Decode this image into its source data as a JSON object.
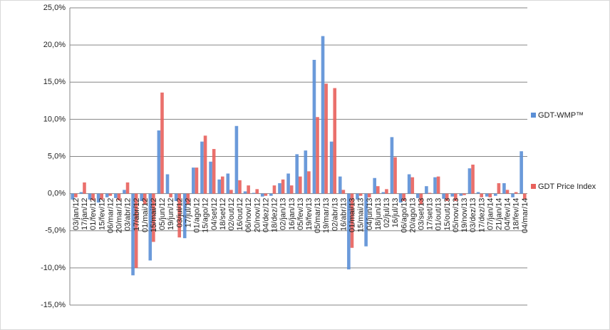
{
  "chart_data": {
    "type": "bar",
    "categories": [
      "03/jan/12",
      "17/jan/12",
      "01/fev/12",
      "15/fev/12",
      "06/mar/12",
      "20/mar/12",
      "03/abr/12",
      "17/abr/12",
      "01/mai/12",
      "15/mai/12",
      "05/jun/12",
      "19/jun/12",
      "03/jul/12",
      "17/jul/12",
      "01/ago/12",
      "15/ago/12",
      "04/set/12",
      "18/set/12",
      "02/out/12",
      "16/out/12",
      "06/nov/12",
      "20/nov/12",
      "04/dez/12",
      "18/dez/12",
      "02/jan/13",
      "16/jan/13",
      "05/fev/13",
      "19/fev/13",
      "05/mar/13",
      "19/mar/13",
      "02/abr/13",
      "16/abr/13",
      "01/mai/13",
      "15/mai/13",
      "04/jun/13",
      "18/jun/13",
      "02/jul/13",
      "16/jul/13",
      "06/ago/13",
      "20/ago/13",
      "03/set/13",
      "17/set/13",
      "01/out/13",
      "15/out/13",
      "05/nov/13",
      "19/nov/13",
      "03/dez/13",
      "17/dez/13",
      "07/jan/14",
      "21/jan/14",
      "04/fev/14",
      "18/fev/14",
      "04/mar/14"
    ],
    "series": [
      {
        "name": "GDT-WMP™",
        "color": "#5b8fd6",
        "values": [
          -0.8,
          0.2,
          -0.8,
          -1.2,
          -0.5,
          -0.6,
          0.5,
          -11.0,
          -1.0,
          -9.0,
          8.5,
          2.6,
          -1.0,
          -6.0,
          3.5,
          7.0,
          4.3,
          1.9,
          2.7,
          9.1,
          0.3,
          0.1,
          -0.4,
          -0.3,
          1.4,
          2.7,
          5.3,
          5.8,
          18.0,
          21.2,
          7.0,
          2.3,
          -10.2,
          -0.8,
          -7.1,
          2.1,
          0.2,
          7.6,
          -1.2,
          2.6,
          -0.6,
          1.0,
          2.2,
          -0.7,
          -0.4,
          -0.3,
          3.4,
          0.2,
          -0.4,
          -0.3,
          1.4,
          -0.5,
          5.7
        ]
      },
      {
        "name": "GDT Price Index",
        "color": "#e8615c",
        "values": [
          -0.5,
          1.5,
          -0.9,
          -0.8,
          -0.3,
          -0.9,
          1.5,
          -10.0,
          -1.5,
          -6.5,
          13.6,
          -0.5,
          -5.9,
          -1.5,
          3.5,
          7.8,
          6.0,
          2.3,
          0.5,
          1.8,
          1.1,
          0.6,
          -0.3,
          1.1,
          1.9,
          1.1,
          2.3,
          3.0,
          10.3,
          14.8,
          14.2,
          0.5,
          -7.3,
          -0.3,
          -0.5,
          1.0,
          0.6,
          4.9,
          -1.0,
          2.2,
          -1.5,
          0.1,
          2.3,
          -1.0,
          -1.0,
          -0.2,
          3.9,
          -0.5,
          -0.5,
          1.4,
          0.5,
          0.2,
          -0.8
        ]
      }
    ],
    "ylim": [
      -15,
      25
    ],
    "yticks": [
      {
        "value": -15,
        "label": "-15,0%"
      },
      {
        "value": -10,
        "label": "-10,0%"
      },
      {
        "value": -5,
        "label": "-5,0%"
      },
      {
        "value": 0,
        "label": "0,0%"
      },
      {
        "value": 5,
        "label": "5,0%"
      },
      {
        "value": 10,
        "label": "10,0%"
      },
      {
        "value": 15,
        "label": "15,0%"
      },
      {
        "value": 20,
        "label": "20,0%"
      },
      {
        "value": 25,
        "label": "25,0%"
      }
    ],
    "grid": true,
    "legend": "right"
  }
}
